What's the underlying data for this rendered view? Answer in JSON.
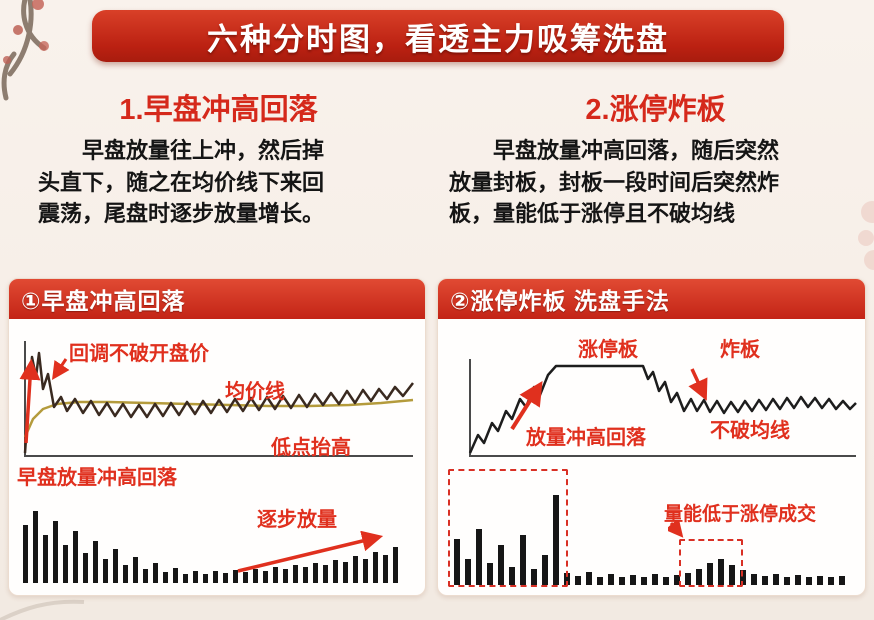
{
  "banner": {
    "title": "六种分时图，看透主力吸筹洗盘"
  },
  "intro": [
    {
      "heading": "1.早盘冲高回落",
      "body": "早盘放量往上冲，然后掉头直下，随之在均价线下来回震荡，尾盘时逐步放量增长。"
    },
    {
      "heading": "2.涨停炸板",
      "body": "早盘放量冲高回落，随后突然放量封板，封板一段时间后突然炸板，量能低于涨停且不破均线"
    }
  ],
  "panel_left": {
    "header": "①早盘冲高回落",
    "labels": {
      "pullback": "回调不破开盘价",
      "avg": "均价线",
      "higher_lows": "低点抬高",
      "surge": "早盘放量冲高回落",
      "gradual": "逐步放量"
    },
    "volume": [
      58,
      72,
      48,
      62,
      38,
      52,
      30,
      42,
      24,
      34,
      18,
      26,
      14,
      20,
      11,
      15,
      9,
      12,
      9,
      12,
      10,
      13,
      11,
      14,
      12,
      16,
      14,
      18,
      16,
      20,
      18,
      23,
      21,
      27,
      24,
      31,
      28,
      36
    ]
  },
  "panel_right": {
    "header": "②涨停炸板 洗盘手法",
    "labels": {
      "limit": "涨停板",
      "break": "炸板",
      "hold": "不破均线",
      "rally": "放量冲高回落",
      "lowvol": "量能低于涨停成交"
    },
    "volume": [
      46,
      26,
      56,
      22,
      40,
      18,
      50,
      16,
      30,
      90,
      12,
      9,
      13,
      8,
      11,
      8,
      10,
      8,
      11,
      8,
      10,
      12,
      16,
      22,
      26,
      20,
      15,
      11,
      9,
      11,
      8,
      10,
      8,
      9,
      8,
      9
    ]
  },
  "colors": {
    "accent": "#e0301e",
    "banner": "#c1261a",
    "avg_line": "#b49b3c",
    "volume_bar": "#161616"
  }
}
